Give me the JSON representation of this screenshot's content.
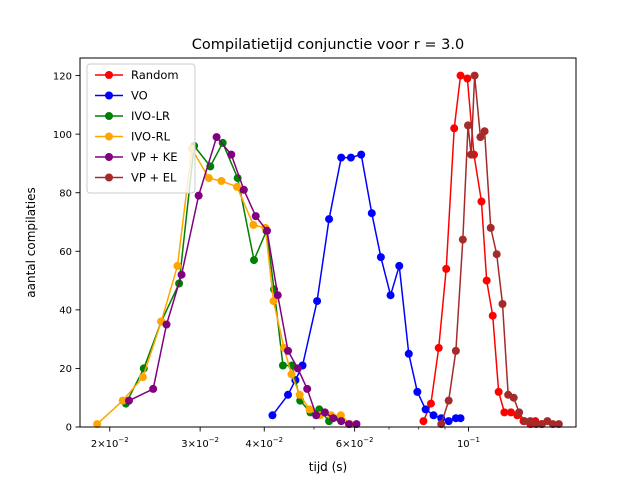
{
  "chart_data": {
    "type": "line",
    "title": "Compilatietijd conjunctie voor r = 3.0",
    "xlabel": "tijd (s)",
    "ylabel": "aantal compilaties",
    "xscale": "log",
    "xlim": [
      0.0175,
      0.162
    ],
    "ylim": [
      0,
      126
    ],
    "x_ticks": [
      {
        "value": 0.02,
        "base": "2×10",
        "exp": "−2"
      },
      {
        "value": 0.03,
        "base": "3×10",
        "exp": "−2"
      },
      {
        "value": 0.04,
        "base": "4×10",
        "exp": "−2"
      },
      {
        "value": 0.06,
        "base": "6×10",
        "exp": "−2"
      },
      {
        "value": 0.1,
        "base": "10",
        "exp": "−1"
      }
    ],
    "x_minor_ticks": [
      0.05,
      0.07,
      0.08,
      0.09
    ],
    "y_ticks": [
      0,
      20,
      40,
      60,
      80,
      100,
      120
    ],
    "grid": false,
    "legend_position": "top-left",
    "series": [
      {
        "name": "Random",
        "color": "#ff0000",
        "points": [
          [
            0.0817,
            2
          ],
          [
            0.0845,
            8
          ],
          [
            0.0875,
            27
          ],
          [
            0.0905,
            54
          ],
          [
            0.0938,
            102
          ],
          [
            0.0965,
            120
          ],
          [
            0.0995,
            119
          ],
          [
            0.1025,
            93
          ],
          [
            0.106,
            77
          ],
          [
            0.1085,
            50
          ],
          [
            0.1115,
            38
          ],
          [
            0.1145,
            12
          ],
          [
            0.1175,
            5
          ],
          [
            0.121,
            5
          ],
          [
            0.1245,
            4
          ],
          [
            0.128,
            2
          ],
          [
            0.132,
            1
          ],
          [
            0.135,
            2
          ],
          [
            0.139,
            1
          ]
        ]
      },
      {
        "name": "VO",
        "color": "#0000ff",
        "points": [
          [
            0.0415,
            4
          ],
          [
            0.0445,
            11
          ],
          [
            0.046,
            16
          ],
          [
            0.0475,
            21
          ],
          [
            0.0507,
            43
          ],
          [
            0.0535,
            71
          ],
          [
            0.0565,
            92
          ],
          [
            0.059,
            92
          ],
          [
            0.0618,
            93
          ],
          [
            0.0648,
            73
          ],
          [
            0.0675,
            58
          ],
          [
            0.0705,
            45
          ],
          [
            0.0733,
            55
          ],
          [
            0.0765,
            25
          ],
          [
            0.0795,
            12
          ],
          [
            0.0825,
            6
          ],
          [
            0.0855,
            4
          ],
          [
            0.0885,
            3
          ],
          [
            0.0915,
            2
          ],
          [
            0.0945,
            3
          ],
          [
            0.0965,
            3
          ]
        ]
      },
      {
        "name": "IVO-LR",
        "color": "#008000",
        "points": [
          [
            0.0215,
            8
          ],
          [
            0.0233,
            20
          ],
          [
            0.0252,
            36
          ],
          [
            0.0273,
            49
          ],
          [
            0.0292,
            96
          ],
          [
            0.0314,
            89
          ],
          [
            0.0332,
            97
          ],
          [
            0.0355,
            85
          ],
          [
            0.0382,
            57
          ],
          [
            0.0404,
            67
          ],
          [
            0.0418,
            47
          ],
          [
            0.0435,
            21
          ],
          [
            0.0453,
            21
          ],
          [
            0.047,
            9
          ],
          [
            0.0492,
            5
          ],
          [
            0.0512,
            6
          ],
          [
            0.0535,
            2
          ],
          [
            0.056,
            3
          ]
        ]
      },
      {
        "name": "IVO-RL",
        "color": "#ffa500",
        "points": [
          [
            0.0189,
            1
          ],
          [
            0.0212,
            9
          ],
          [
            0.0232,
            17
          ],
          [
            0.0252,
            36
          ],
          [
            0.0271,
            55
          ],
          [
            0.0289,
            95
          ],
          [
            0.0312,
            85
          ],
          [
            0.033,
            84
          ],
          [
            0.0354,
            82
          ],
          [
            0.0381,
            69
          ],
          [
            0.0402,
            68
          ],
          [
            0.0417,
            43
          ],
          [
            0.0437,
            27
          ],
          [
            0.0452,
            18
          ],
          [
            0.0469,
            11
          ],
          [
            0.049,
            6
          ],
          [
            0.0514,
            4
          ],
          [
            0.054,
            4
          ],
          [
            0.0564,
            4
          ],
          [
            0.0587,
            1
          ]
        ]
      },
      {
        "name": "VP + KE",
        "color": "#800080",
        "points": [
          [
            0.0218,
            9
          ],
          [
            0.0243,
            13
          ],
          [
            0.0258,
            35
          ],
          [
            0.0276,
            52
          ],
          [
            0.0298,
            79
          ],
          [
            0.0323,
            99
          ],
          [
            0.0345,
            93
          ],
          [
            0.0365,
            81
          ],
          [
            0.0385,
            72
          ],
          [
            0.0405,
            67
          ],
          [
            0.0425,
            45
          ],
          [
            0.0445,
            26
          ],
          [
            0.0465,
            20
          ],
          [
            0.0485,
            13
          ],
          [
            0.0505,
            4
          ],
          [
            0.0525,
            5
          ],
          [
            0.0545,
            3
          ],
          [
            0.0565,
            2
          ],
          [
            0.0585,
            1
          ],
          [
            0.0605,
            1
          ]
        ]
      },
      {
        "name": "VP + EL",
        "color": "#a52a2a",
        "points": [
          [
            0.0885,
            1
          ],
          [
            0.0915,
            9
          ],
          [
            0.0945,
            26
          ],
          [
            0.0975,
            64
          ],
          [
            0.0998,
            103
          ],
          [
            0.1012,
            93
          ],
          [
            0.1028,
            120
          ],
          [
            0.1055,
            99
          ],
          [
            0.1075,
            101
          ],
          [
            0.1105,
            68
          ],
          [
            0.1135,
            59
          ],
          [
            0.1165,
            42
          ],
          [
            0.1195,
            11
          ],
          [
            0.1225,
            10
          ],
          [
            0.1255,
            5
          ],
          [
            0.1285,
            2
          ],
          [
            0.132,
            2
          ],
          [
            0.1355,
            1
          ],
          [
            0.139,
            1
          ],
          [
            0.1425,
            2
          ],
          [
            0.146,
            1
          ],
          [
            0.15,
            1
          ]
        ]
      }
    ]
  }
}
